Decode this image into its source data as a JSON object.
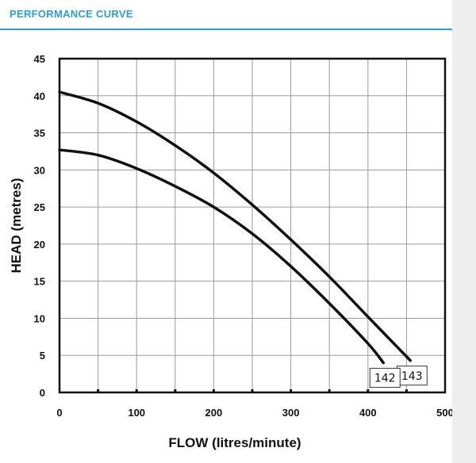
{
  "header": {
    "title": "PERFORMANCE CURVE",
    "accent_color": "#2a9fd8"
  },
  "chart_data": {
    "type": "line",
    "title": "",
    "xlabel": "FLOW (litres/minute)",
    "ylabel": "HEAD (metres)",
    "xlim": [
      0,
      500
    ],
    "ylim": [
      0,
      45
    ],
    "x_ticks": [
      0,
      100,
      200,
      300,
      400,
      500
    ],
    "y_ticks": [
      0,
      5,
      10,
      15,
      20,
      25,
      30,
      35,
      40,
      45
    ],
    "grid": true,
    "series": [
      {
        "name": "143",
        "color": "#111111",
        "points": [
          [
            0,
            40.5
          ],
          [
            50,
            39.0
          ],
          [
            100,
            36.5
          ],
          [
            150,
            33.3
          ],
          [
            200,
            29.6
          ],
          [
            250,
            25.3
          ],
          [
            300,
            20.6
          ],
          [
            350,
            15.6
          ],
          [
            400,
            10.2
          ],
          [
            455,
            4.3
          ]
        ]
      },
      {
        "name": "142",
        "color": "#111111",
        "points": [
          [
            0,
            32.7
          ],
          [
            50,
            32.0
          ],
          [
            100,
            30.2
          ],
          [
            150,
            27.8
          ],
          [
            200,
            25.0
          ],
          [
            250,
            21.4
          ],
          [
            300,
            17.0
          ],
          [
            350,
            12.0
          ],
          [
            400,
            6.6
          ],
          [
            420,
            4.0
          ]
        ]
      }
    ]
  }
}
